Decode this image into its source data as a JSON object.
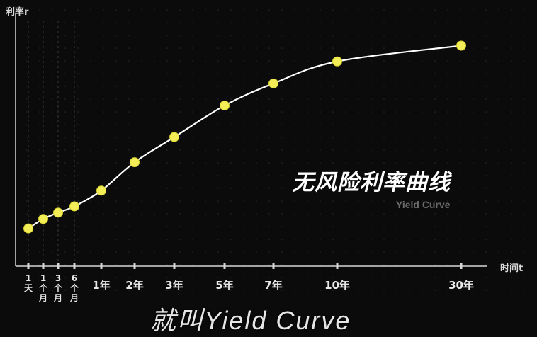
{
  "labels": {
    "y_axis": "利率r",
    "x_axis": "时间t",
    "title_cn": "无风险利率曲线",
    "title_en": "Yield Curve",
    "caption": "就叫Yield Curve"
  },
  "colors": {
    "background": "#0b0b0b",
    "curve": "#ffffff",
    "point": "#f3ee57",
    "point_stroke": "#d7d22f",
    "axis": "#d8d8d8",
    "grid_dots": "#2a2a2a"
  },
  "chart_data": {
    "type": "line",
    "title": "无风险利率曲线",
    "subtitle": "Yield Curve",
    "xlabel": "时间t",
    "ylabel": "利率r",
    "grid": false,
    "categories": [
      "1天",
      "1个月",
      "3个月",
      "6个月",
      "1年",
      "2年",
      "3年",
      "5年",
      "7年",
      "10年",
      "30年"
    ],
    "tick_labels": [
      "1\n天",
      "1\n个\n月",
      "3\n个\n月",
      "6\n个\n月",
      "1年",
      "2年",
      "3年",
      "5年",
      "7年",
      "10年",
      "30年"
    ],
    "series": [
      {
        "values": [
          12,
          15,
          17,
          19,
          24,
          33,
          41,
          51,
          58,
          65,
          70
        ]
      }
    ],
    "ylim": [
      0,
      80
    ]
  }
}
